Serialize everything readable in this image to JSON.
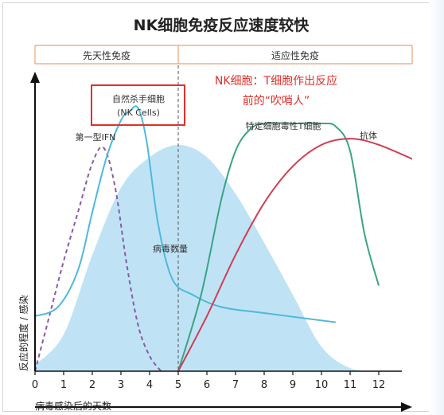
{
  "chart_data": {
    "type": "line",
    "title": "NK细胞免疫反应速度较快",
    "phases": {
      "innate": "先天性免疫",
      "adaptive": "适应性免疫"
    },
    "xlabel": "病毒感染后的天数",
    "ylabel": "反应的程度 / 感染",
    "xlim": [
      0,
      13
    ],
    "x_ticks": [
      0,
      1,
      2,
      3,
      4,
      5,
      6,
      7,
      8,
      9,
      10,
      11,
      12
    ],
    "ylim": [
      0,
      1
    ],
    "grid": false,
    "legend": "none",
    "callout": {
      "title_line1": "NK细胞：T细胞作出反应",
      "title_line2": "前的“吹哨人”"
    },
    "series": [
      {
        "name": "病毒数量",
        "style": "filled-area",
        "color": "#bfe3f5",
        "x": [
          0,
          1,
          2,
          3,
          4,
          5,
          6,
          7,
          8,
          9,
          10,
          11,
          12
        ],
        "values": [
          0.02,
          0.12,
          0.38,
          0.6,
          0.7,
          0.74,
          0.7,
          0.58,
          0.42,
          0.25,
          0.08,
          0.01,
          0
        ]
      },
      {
        "name": "第一型IFN",
        "style": "dashed",
        "color": "#8a5aa6",
        "x": [
          0,
          0.5,
          1,
          1.5,
          2,
          2.4,
          2.8,
          3.2,
          3.6,
          4,
          4.4
        ],
        "values": [
          0,
          0.18,
          0.36,
          0.52,
          0.68,
          0.73,
          0.6,
          0.35,
          0.15,
          0.05,
          0
        ]
      },
      {
        "name": "自然杀手细胞",
        "name2": "(NK Cells)",
        "style": "solid",
        "color": "#4fb8dc",
        "x": [
          0,
          0.8,
          1.5,
          2,
          2.5,
          3,
          3.3,
          3.6,
          3.9,
          4.3,
          4.8,
          5.5,
          6.5,
          8,
          10.5
        ],
        "values": [
          0.18,
          0.21,
          0.33,
          0.52,
          0.7,
          0.82,
          0.85,
          0.86,
          0.75,
          0.48,
          0.3,
          0.25,
          0.21,
          0.19,
          0.16
        ]
      },
      {
        "name": "特定细胞毒性T细胞",
        "style": "solid",
        "color": "#3aa385",
        "x": [
          5,
          5.8,
          6.5,
          7,
          7.5,
          8,
          9,
          10,
          10.5,
          11,
          11.5,
          12
        ],
        "values": [
          0,
          0.25,
          0.56,
          0.72,
          0.79,
          0.81,
          0.81,
          0.81,
          0.8,
          0.72,
          0.45,
          0.28
        ]
      },
      {
        "name": "抗体",
        "style": "solid",
        "color": "#cf3d55",
        "x": [
          5,
          6,
          7,
          8,
          9,
          10,
          11,
          12,
          13.5
        ],
        "values": [
          0,
          0.18,
          0.38,
          0.55,
          0.67,
          0.74,
          0.76,
          0.74,
          0.68
        ]
      }
    ],
    "annotations": {
      "threshold_day": 5
    }
  }
}
